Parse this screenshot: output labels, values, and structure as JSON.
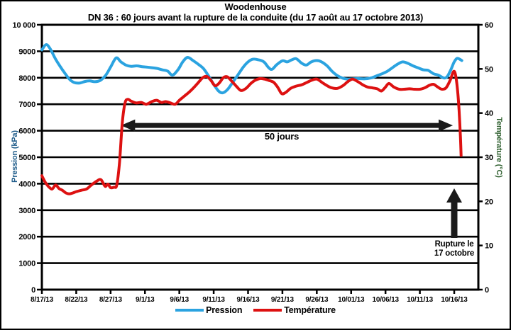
{
  "chart_data": {
    "type": "line",
    "title": "Woodenhouse",
    "subtitle": "DN 36 : 60 jours avant la rupture de la conduite (du 17 août au 17 octobre 2013)",
    "x_axis": {
      "tick_labels": [
        "8/17/13",
        "8/22/13",
        "8/27/13",
        "9/1/13",
        "9/6/13",
        "9/11/13",
        "9/16/13",
        "9/21/13",
        "9/26/13",
        "10/01/13",
        "10/06/13",
        "10/11/13",
        "10/16/13"
      ],
      "tick_step_days": 5,
      "start_date": "8/17/13",
      "end_date": "10/16/13"
    },
    "y_left": {
      "label": "Pression (kPa)",
      "tick_labels": [
        "10 000",
        "9000",
        "8000",
        "7000",
        "6000",
        "5000",
        "4000",
        "3000",
        "2000",
        "1000",
        "0"
      ],
      "tick_values": [
        10000,
        9000,
        8000,
        7000,
        6000,
        5000,
        4000,
        3000,
        2000,
        1000,
        0
      ],
      "range": [
        0,
        10000
      ],
      "grid": true
    },
    "y_right": {
      "label": "Température (°C)",
      "tick_labels": [
        "60",
        "50",
        "40",
        "30",
        "20",
        "10",
        "0"
      ],
      "tick_values": [
        60,
        50,
        40,
        30,
        20,
        10,
        0
      ],
      "range": [
        0,
        60
      ],
      "grid": false
    },
    "legend": [
      "Pression",
      "Température"
    ],
    "legend_position": "bottom",
    "series": [
      {
        "name": "Pression",
        "axis": "left",
        "unit": "kPa",
        "color": "#2BA3E0",
        "points": [
          [
            0,
            9050
          ],
          [
            0.6,
            9250
          ],
          [
            1.2,
            9100
          ],
          [
            2,
            8700
          ],
          [
            3,
            8300
          ],
          [
            4,
            7950
          ],
          [
            4.7,
            7820
          ],
          [
            5.5,
            7800
          ],
          [
            6.3,
            7860
          ],
          [
            7,
            7880
          ],
          [
            7.7,
            7850
          ],
          [
            8.5,
            7900
          ],
          [
            9.3,
            8100
          ],
          [
            10,
            8400
          ],
          [
            10.8,
            8750
          ],
          [
            11.5,
            8600
          ],
          [
            12.3,
            8470
          ],
          [
            13,
            8430
          ],
          [
            13.8,
            8450
          ],
          [
            14.5,
            8420
          ],
          [
            15.3,
            8400
          ],
          [
            16,
            8380
          ],
          [
            16.8,
            8350
          ],
          [
            17.5,
            8300
          ],
          [
            18.3,
            8250
          ],
          [
            19,
            8100
          ],
          [
            19.8,
            8300
          ],
          [
            20.5,
            8600
          ],
          [
            21.2,
            8770
          ],
          [
            22,
            8650
          ],
          [
            22.8,
            8500
          ],
          [
            23.5,
            8350
          ],
          [
            24.3,
            8050
          ],
          [
            25,
            7750
          ],
          [
            25.7,
            7500
          ],
          [
            26.3,
            7430
          ],
          [
            27,
            7550
          ],
          [
            27.7,
            7800
          ],
          [
            28.5,
            8100
          ],
          [
            29.3,
            8400
          ],
          [
            30,
            8600
          ],
          [
            30.7,
            8700
          ],
          [
            31.5,
            8680
          ],
          [
            32.3,
            8600
          ],
          [
            33,
            8380
          ],
          [
            33.5,
            8320
          ],
          [
            34.2,
            8500
          ],
          [
            35,
            8640
          ],
          [
            35.7,
            8600
          ],
          [
            36.3,
            8670
          ],
          [
            37,
            8720
          ],
          [
            37.8,
            8550
          ],
          [
            38.5,
            8480
          ],
          [
            39.2,
            8600
          ],
          [
            40,
            8650
          ],
          [
            40.7,
            8600
          ],
          [
            41.5,
            8450
          ],
          [
            42.2,
            8250
          ],
          [
            43,
            8080
          ],
          [
            43.8,
            7980
          ],
          [
            44.5,
            7950
          ],
          [
            45.3,
            7960
          ],
          [
            46,
            7970
          ],
          [
            47,
            7960
          ],
          [
            48,
            8000
          ],
          [
            48.8,
            8080
          ],
          [
            49.5,
            8150
          ],
          [
            50.3,
            8250
          ],
          [
            51,
            8380
          ],
          [
            51.8,
            8520
          ],
          [
            52.5,
            8600
          ],
          [
            53.2,
            8550
          ],
          [
            54,
            8450
          ],
          [
            54.7,
            8380
          ],
          [
            55.5,
            8300
          ],
          [
            56.2,
            8280
          ],
          [
            57,
            8150
          ],
          [
            57.7,
            8100
          ],
          [
            58.5,
            7990
          ],
          [
            59,
            8050
          ],
          [
            59.5,
            8300
          ],
          [
            60,
            8600
          ],
          [
            60.4,
            8730
          ],
          [
            60.8,
            8700
          ],
          [
            61.1,
            8650
          ]
        ]
      },
      {
        "name": "Température",
        "axis": "right",
        "unit": "°C",
        "color": "#DD1111",
        "points": [
          [
            0,
            25.8
          ],
          [
            0.5,
            24.3
          ],
          [
            1,
            23.3
          ],
          [
            1.5,
            22.8
          ],
          [
            2,
            23.7
          ],
          [
            2.5,
            22.9
          ],
          [
            3,
            22.5
          ],
          [
            3.5,
            21.9
          ],
          [
            4,
            21.7
          ],
          [
            4.5,
            21.9
          ],
          [
            5,
            22.2
          ],
          [
            5.7,
            22.5
          ],
          [
            6.5,
            22.8
          ],
          [
            7.2,
            23.7
          ],
          [
            8,
            24.6
          ],
          [
            8.6,
            24.9
          ],
          [
            9.2,
            23.4
          ],
          [
            9.6,
            23.9
          ],
          [
            10,
            23.1
          ],
          [
            10.5,
            23.2
          ],
          [
            10.9,
            23.7
          ],
          [
            11.3,
            28.8
          ],
          [
            11.7,
            37.8
          ],
          [
            12.1,
            42.3
          ],
          [
            12.5,
            43.1
          ],
          [
            13,
            42.7
          ],
          [
            13.7,
            42.3
          ],
          [
            14.5,
            42.4
          ],
          [
            15.2,
            42
          ],
          [
            16,
            42.6
          ],
          [
            16.7,
            42.9
          ],
          [
            17.4,
            42.4
          ],
          [
            18,
            42.6
          ],
          [
            18.7,
            42.3
          ],
          [
            19.4,
            42
          ],
          [
            20,
            42.9
          ],
          [
            20.7,
            43.8
          ],
          [
            21.4,
            44.7
          ],
          [
            22,
            45.6
          ],
          [
            22.7,
            46.8
          ],
          [
            23.4,
            48
          ],
          [
            24,
            48.3
          ],
          [
            24.6,
            47.4
          ],
          [
            25.2,
            46.2
          ],
          [
            25.8,
            46.8
          ],
          [
            26.4,
            48
          ],
          [
            27,
            48.2
          ],
          [
            27.7,
            47.1
          ],
          [
            28.4,
            45.9
          ],
          [
            29,
            45.1
          ],
          [
            29.7,
            45.6
          ],
          [
            30.4,
            46.7
          ],
          [
            31,
            47.4
          ],
          [
            31.7,
            47.8
          ],
          [
            32.4,
            47.7
          ],
          [
            33,
            47.4
          ],
          [
            33.7,
            47
          ],
          [
            34.3,
            45.9
          ],
          [
            34.9,
            44.4
          ],
          [
            35.5,
            44.7
          ],
          [
            36.2,
            45.6
          ],
          [
            37,
            46.1
          ],
          [
            37.8,
            46.4
          ],
          [
            38.5,
            46.9
          ],
          [
            39.2,
            47.4
          ],
          [
            40,
            47.7
          ],
          [
            40.8,
            46.9
          ],
          [
            41.5,
            46.2
          ],
          [
            42.2,
            45.7
          ],
          [
            43,
            45.6
          ],
          [
            43.8,
            46.2
          ],
          [
            44.5,
            47.1
          ],
          [
            45.2,
            47.7
          ],
          [
            46,
            47.1
          ],
          [
            46.7,
            46.4
          ],
          [
            47.4,
            45.9
          ],
          [
            48.1,
            45.7
          ],
          [
            48.8,
            45.5
          ],
          [
            49.4,
            45
          ],
          [
            50,
            45.9
          ],
          [
            50.5,
            46.7
          ],
          [
            51.2,
            45.9
          ],
          [
            52,
            45.4
          ],
          [
            52.7,
            45.4
          ],
          [
            53.5,
            45.5
          ],
          [
            54.2,
            45.4
          ],
          [
            55,
            45.4
          ],
          [
            55.7,
            45.7
          ],
          [
            56.4,
            46.3
          ],
          [
            57,
            46.5
          ],
          [
            57.6,
            45.9
          ],
          [
            58.2,
            45.4
          ],
          [
            58.8,
            45.7
          ],
          [
            59.4,
            47.4
          ],
          [
            59.9,
            49.4
          ],
          [
            60.2,
            48.6
          ],
          [
            60.5,
            45
          ],
          [
            60.7,
            40.8
          ],
          [
            60.9,
            34.8
          ],
          [
            61,
            30.4
          ]
        ]
      }
    ],
    "annotations": {
      "duration": {
        "label": "50 jours",
        "from_day": 11.5,
        "to_day": 59.8,
        "at_left_axis_value": 6200
      },
      "rupture": {
        "lines": [
          "Rupture le",
          "17 octobre"
        ],
        "at_day": 60
      }
    }
  }
}
